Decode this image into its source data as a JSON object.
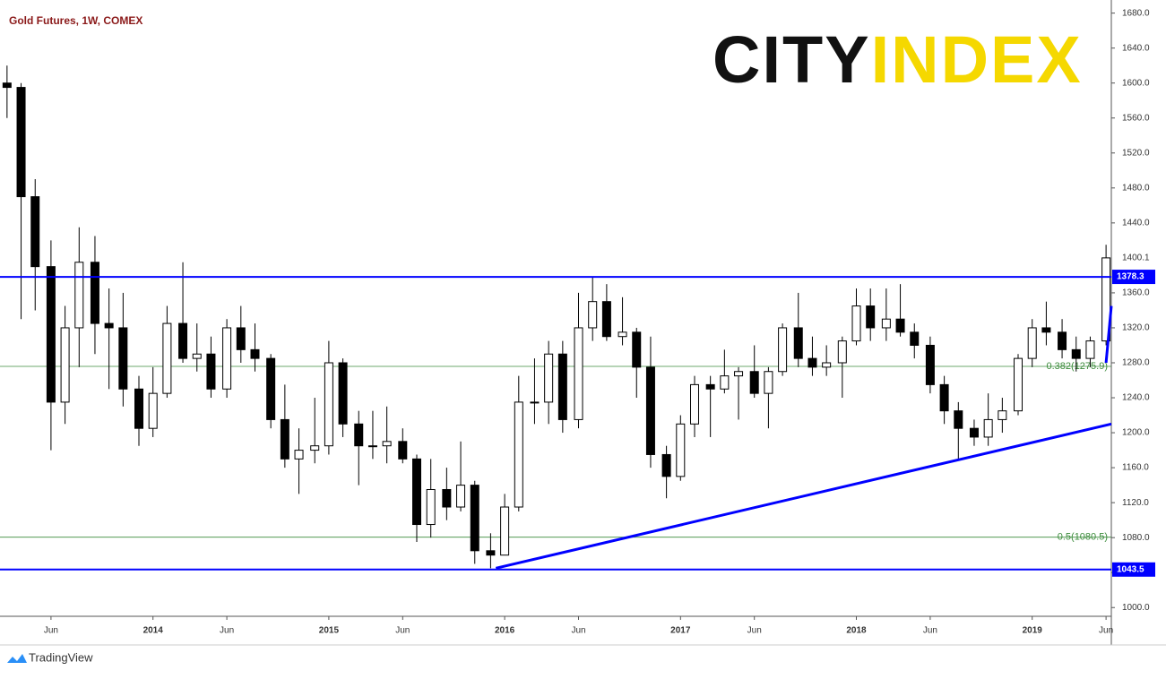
{
  "chart_data": {
    "type": "candlestick",
    "title": "Gold Futures, 1W, COMEX",
    "x": [
      2013.17,
      2013.25,
      2013.33,
      2013.42,
      2013.5,
      2013.58,
      2013.67,
      2013.75,
      2013.83,
      2013.92,
      2014.0,
      2014.08,
      2014.17,
      2014.25,
      2014.33,
      2014.42,
      2014.5,
      2014.58,
      2014.67,
      2014.75,
      2014.83,
      2014.92,
      2015.0,
      2015.08,
      2015.17,
      2015.25,
      2015.33,
      2015.42,
      2015.5,
      2015.58,
      2015.67,
      2015.75,
      2015.83,
      2015.92,
      2016.0,
      2016.08,
      2016.17,
      2016.25,
      2016.33,
      2016.42,
      2016.5,
      2016.58,
      2016.67,
      2016.75,
      2016.83,
      2016.92,
      2017.0,
      2017.08,
      2017.17,
      2017.25,
      2017.33,
      2017.42,
      2017.5,
      2017.58,
      2017.67,
      2017.75,
      2017.83,
      2017.92,
      2018.0,
      2018.08,
      2018.17,
      2018.25,
      2018.33,
      2018.42,
      2018.5,
      2018.58,
      2018.67,
      2018.75,
      2018.83,
      2018.92,
      2019.0,
      2019.08,
      2019.17,
      2019.25,
      2019.33,
      2019.42
    ],
    "open": [
      1600,
      1595,
      1470,
      1390,
      1235,
      1320,
      1395,
      1325,
      1320,
      1250,
      1205,
      1245,
      1325,
      1285,
      1290,
      1250,
      1320,
      1295,
      1285,
      1215,
      1170,
      1180,
      1185,
      1280,
      1210,
      1185,
      1185,
      1190,
      1170,
      1095,
      1135,
      1115,
      1140,
      1065,
      1060,
      1115,
      1235,
      1235,
      1290,
      1215,
      1320,
      1350,
      1310,
      1315,
      1275,
      1175,
      1150,
      1210,
      1255,
      1250,
      1265,
      1270,
      1245,
      1270,
      1320,
      1285,
      1275,
      1280,
      1305,
      1345,
      1320,
      1330,
      1315,
      1300,
      1255,
      1225,
      1205,
      1195,
      1215,
      1225,
      1285,
      1320,
      1315,
      1295,
      1285,
      1305
    ],
    "high": [
      1620,
      1600,
      1490,
      1420,
      1345,
      1435,
      1425,
      1365,
      1360,
      1265,
      1275,
      1345,
      1395,
      1325,
      1310,
      1330,
      1345,
      1325,
      1290,
      1255,
      1205,
      1240,
      1305,
      1285,
      1225,
      1225,
      1230,
      1205,
      1175,
      1170,
      1160,
      1190,
      1145,
      1085,
      1130,
      1265,
      1285,
      1305,
      1305,
      1360,
      1378,
      1370,
      1355,
      1320,
      1310,
      1185,
      1220,
      1265,
      1265,
      1295,
      1275,
      1300,
      1275,
      1325,
      1360,
      1310,
      1300,
      1310,
      1365,
      1365,
      1365,
      1370,
      1325,
      1310,
      1265,
      1235,
      1215,
      1245,
      1240,
      1290,
      1330,
      1350,
      1330,
      1310,
      1310,
      1415
    ],
    "low": [
      1560,
      1330,
      1340,
      1180,
      1210,
      1275,
      1290,
      1250,
      1230,
      1185,
      1195,
      1240,
      1280,
      1270,
      1240,
      1240,
      1280,
      1270,
      1205,
      1160,
      1130,
      1165,
      1175,
      1195,
      1140,
      1170,
      1165,
      1165,
      1075,
      1080,
      1100,
      1110,
      1050,
      1045,
      1060,
      1110,
      1210,
      1210,
      1200,
      1205,
      1305,
      1305,
      1300,
      1240,
      1160,
      1125,
      1145,
      1195,
      1195,
      1245,
      1215,
      1240,
      1205,
      1265,
      1275,
      1265,
      1265,
      1240,
      1300,
      1305,
      1305,
      1310,
      1285,
      1245,
      1210,
      1170,
      1185,
      1185,
      1200,
      1220,
      1275,
      1300,
      1285,
      1270,
      1275,
      1300
    ],
    "close": [
      1595,
      1470,
      1390,
      1235,
      1320,
      1395,
      1325,
      1320,
      1250,
      1205,
      1245,
      1325,
      1285,
      1290,
      1250,
      1320,
      1295,
      1285,
      1215,
      1170,
      1180,
      1185,
      1280,
      1210,
      1185,
      1185,
      1190,
      1170,
      1095,
      1135,
      1115,
      1140,
      1065,
      1060,
      1115,
      1235,
      1235,
      1290,
      1215,
      1320,
      1350,
      1310,
      1315,
      1275,
      1175,
      1150,
      1210,
      1255,
      1250,
      1265,
      1270,
      1245,
      1270,
      1320,
      1285,
      1275,
      1280,
      1305,
      1345,
      1320,
      1330,
      1315,
      1300,
      1255,
      1225,
      1205,
      1195,
      1215,
      1225,
      1285,
      1320,
      1315,
      1295,
      1285,
      1305,
      1400
    ],
    "up_color": "#ffffff",
    "down_color": "#000000",
    "edge_color": "#000000",
    "xlim": [
      2013.13,
      2019.45
    ],
    "xticks": [
      {
        "value": 2013.42,
        "label": "Jun"
      },
      2014,
      {
        "value": 2014.42,
        "label": "Jun"
      },
      2015,
      {
        "value": 2015.42,
        "label": "Jun"
      },
      2016,
      {
        "value": 2016.42,
        "label": "Jun"
      },
      2017,
      {
        "value": 2017.42,
        "label": "Jun"
      },
      2018,
      {
        "value": 2018.42,
        "label": "Jun"
      },
      2019,
      {
        "value": 2019.42,
        "label": "Jun"
      }
    ],
    "ylim": [
      990,
      1695
    ],
    "yticks": [
      {
        "value": 1000,
        "label": "1000.0"
      },
      {
        "value": 1040,
        "label": "1040.0"
      },
      {
        "value": 1080,
        "label": "1080.0"
      },
      {
        "value": 1120,
        "label": "1120.0"
      },
      {
        "value": 1160,
        "label": "1160.0"
      },
      {
        "value": 1200,
        "label": "1200.0"
      },
      {
        "value": 1240,
        "label": "1240.0"
      },
      {
        "value": 1280,
        "label": "1280.0"
      },
      {
        "value": 1320,
        "label": "1320.0"
      },
      {
        "value": 1360,
        "label": "1360.0"
      },
      {
        "value": 1440,
        "label": "1440.0"
      },
      {
        "value": 1480,
        "label": "1480.0"
      },
      {
        "value": 1520,
        "label": "1520.0"
      },
      {
        "value": 1560,
        "label": "1560.0"
      },
      {
        "value": 1600,
        "label": "1600.0"
      },
      {
        "value": 1640,
        "label": "1640.0"
      },
      {
        "value": 1680,
        "label": "1680.0"
      }
    ],
    "last_price": 1400.1,
    "hlines": [
      {
        "value": 1378.3,
        "color": "#0000ff"
      },
      {
        "value": 1043.5,
        "color": "#0000ff"
      }
    ],
    "fib_lines": [
      {
        "value": 1275.9,
        "label": "0.382(1275.9)",
        "color": "#3c8c3c"
      },
      {
        "value": 1080.5,
        "label": "0.5(1080.5)",
        "color": "#3c8c3c"
      }
    ],
    "trendlines": [
      {
        "x": [
          2015.95,
          2019.45
        ],
        "y": [
          1045,
          1210
        ],
        "color": "#0000ff"
      },
      {
        "x": [
          2019.42,
          2019.45
        ],
        "y": [
          1280,
          1345
        ],
        "color": "#0000ff"
      }
    ],
    "logo": {
      "left": "CITY",
      "right": "INDEX"
    },
    "footer": "TradingView"
  }
}
